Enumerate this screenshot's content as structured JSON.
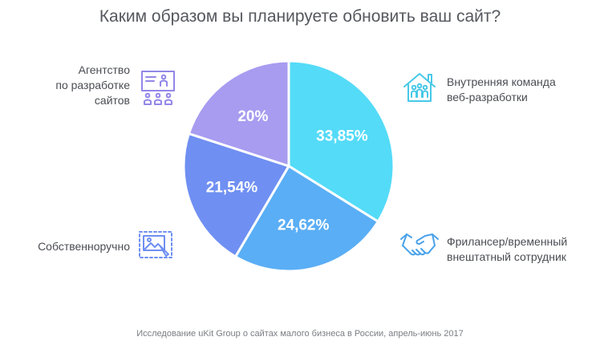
{
  "chart_data": {
    "type": "pie",
    "title": "Каким образом вы планируете обновить ваш сайт?",
    "source": "Исследование uKit Group о сайтах малого бизнеса в России, апрель-июнь 2017",
    "slices": [
      {
        "name": "Внутренняя команда веб-разработки",
        "name_lines": [
          "Внутренняя команда",
          "веб-разработки"
        ],
        "value": 33.85,
        "value_label": "33,85%",
        "color": "#54dbf8",
        "icon": "house-team-icon"
      },
      {
        "name": "Фрилансер/временный внештатный сотрудник",
        "name_lines": [
          "Фрилансер/временный",
          "внештатный сотрудник"
        ],
        "value": 24.62,
        "value_label": "24,62%",
        "color": "#5aaef5",
        "icon": "handshake-icon"
      },
      {
        "name": "Собственноручно",
        "name_lines": [
          "Собственноручно"
        ],
        "value": 21.54,
        "value_label": "21,54%",
        "color": "#6f8ff2",
        "icon": "image-edit-icon"
      },
      {
        "name": "Агентство по разработке сайтов",
        "name_lines": [
          "Агентство",
          "по разработке",
          "сайтов"
        ],
        "value": 20,
        "value_label": "20%",
        "color": "#a79cf0",
        "icon": "presentation-team-icon"
      }
    ]
  }
}
